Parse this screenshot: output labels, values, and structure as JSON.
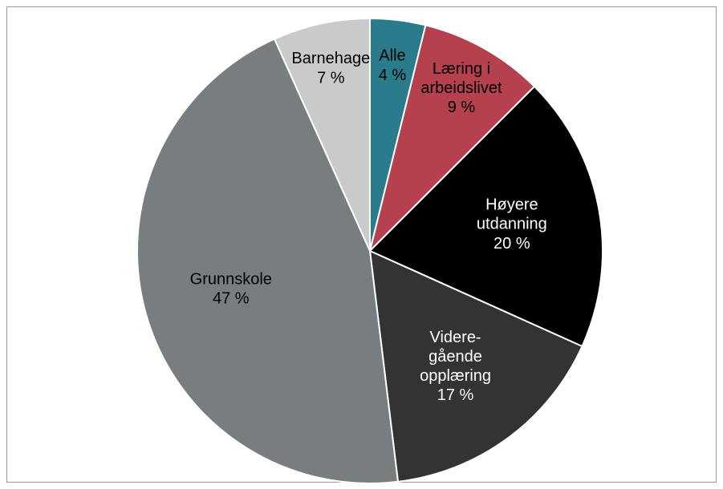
{
  "chart_data": {
    "type": "pie",
    "categories": [
      "Alle",
      "Læring i\narbeidslivet",
      "Høyere\nutdanning",
      "Videre-\ngående\nopplæring",
      "Grunnskole",
      "Barnehage"
    ],
    "values": [
      4,
      9,
      20,
      17,
      47,
      7
    ],
    "value_labels": [
      "4 %",
      "9 %",
      "20 %",
      "17 %",
      "47 %",
      "7 %"
    ],
    "colors": [
      "#2a7b8c",
      "#b5404e",
      "#000000",
      "#333333",
      "#787d80",
      "#c8cacc"
    ]
  }
}
